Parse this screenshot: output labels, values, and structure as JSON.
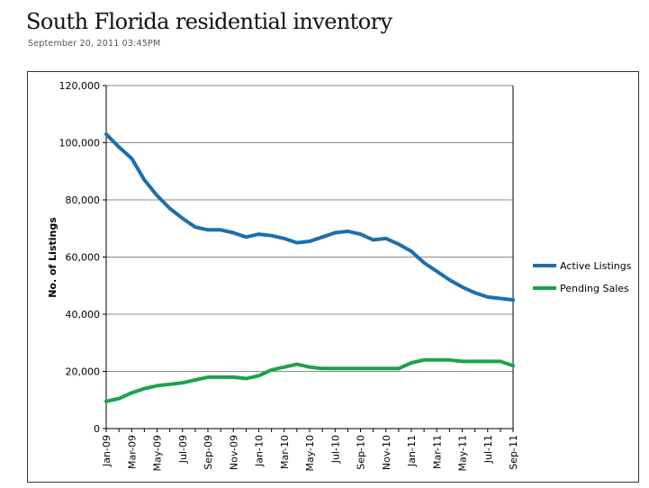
{
  "header": {
    "title": "South Florida residential inventory",
    "timestamp": "September 20, 2011 03:45PM"
  },
  "colors": {
    "active": "#1B6FB0",
    "pending": "#1CA24C",
    "grid": "#8c8c8c"
  },
  "chart_data": {
    "type": "line",
    "title": "",
    "xlabel": "",
    "ylabel": "No. of Listings",
    "ylim": [
      0,
      120000
    ],
    "yticks": [
      0,
      20000,
      40000,
      60000,
      80000,
      100000,
      120000
    ],
    "ytick_labels": [
      "0",
      "20,000",
      "40,000",
      "60,000",
      "80,000",
      "100,000",
      "120,000"
    ],
    "x_tick_labels": [
      "Jan-09",
      "Mar-09",
      "May-09",
      "Jul-09",
      "Sep-09",
      "Nov-09",
      "Jan-10",
      "Mar-10",
      "May-10",
      "Jul-10",
      "Sep-10",
      "Nov-10",
      "Jan-11",
      "Mar-11",
      "May-11",
      "Jul-11",
      "Sep-11"
    ],
    "x_tick_every": 2,
    "x_point_count": 33,
    "grid": "horizontal major",
    "legend_position": "right",
    "series": [
      {
        "name": "Active Listings",
        "color_key": "active",
        "values": [
          103000,
          98500,
          94500,
          87000,
          81500,
          77000,
          73500,
          70500,
          69500,
          69500,
          68500,
          67000,
          68000,
          67500,
          66500,
          65000,
          65500,
          67000,
          68500,
          69000,
          68000,
          66000,
          66500,
          64500,
          62000,
          58000,
          55000,
          52000,
          49500,
          47500,
          46000,
          45500,
          45000
        ]
      },
      {
        "name": "Pending Sales",
        "color_key": "pending",
        "values": [
          9500,
          10500,
          12500,
          14000,
          15000,
          15500,
          16000,
          17000,
          18000,
          18000,
          18000,
          17500,
          18500,
          20500,
          21500,
          22500,
          21500,
          21000,
          21000,
          21000,
          21000,
          21000,
          21000,
          21000,
          23000,
          24000,
          24000,
          24000,
          23500,
          23500,
          23500,
          23500,
          22000
        ]
      }
    ]
  }
}
